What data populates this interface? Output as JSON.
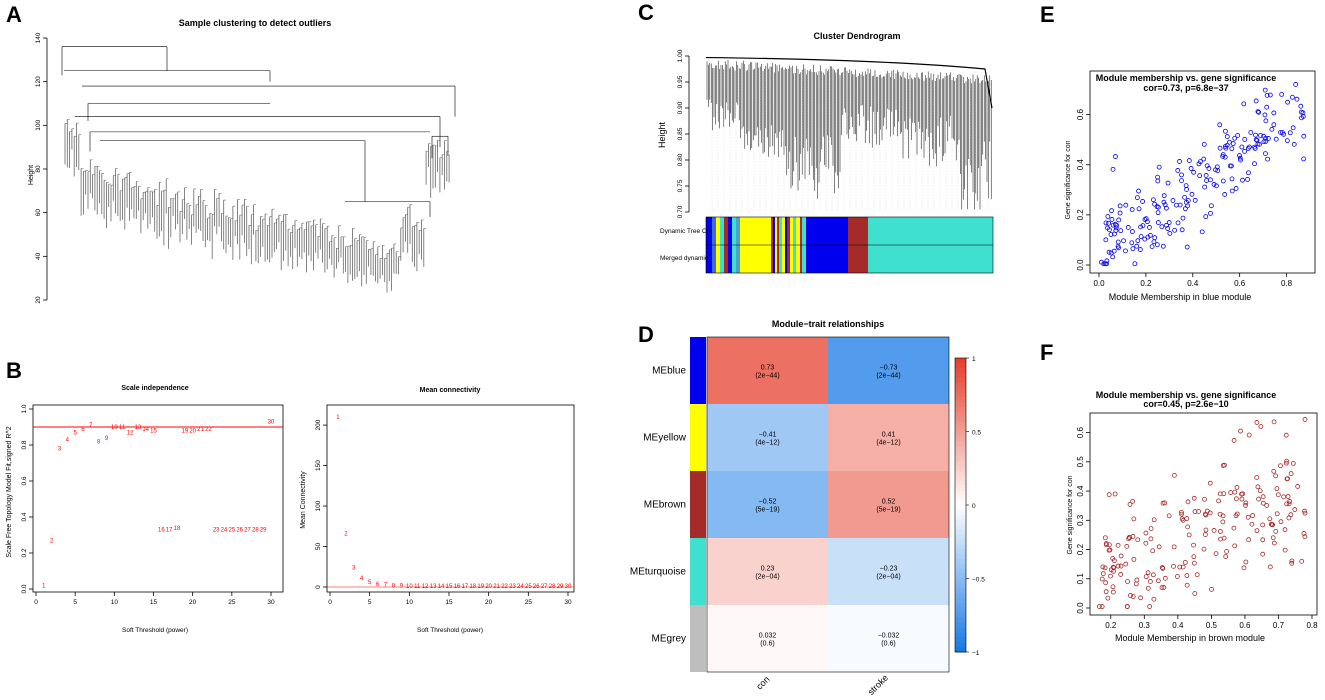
{
  "colors": {
    "blue": "#0000ee",
    "yellow": "#ffff00",
    "brown": "#a52a2a",
    "turquoise": "#40e0d0",
    "grey": "#bebebe",
    "red": "#ff0000",
    "brownPoint": "#a52a2a"
  },
  "panels": {
    "A": {
      "letter": "A",
      "title": "Sample clustering to detect outliers",
      "ylabel": "Height",
      "yticks": [
        "20",
        "40",
        "60",
        "80",
        "100",
        "120",
        "140"
      ]
    },
    "B": {
      "letter": "B",
      "left": {
        "title": "Scale independence",
        "xlabel": "Soft Threshold (power)",
        "ylabel": "Scale Free Topology Model Fit,signed R^2",
        "xticks": [
          "0",
          "5",
          "10",
          "15",
          "20",
          "25",
          "30"
        ],
        "yticks": [
          "0.0",
          "0.2",
          "0.4",
          "0.6",
          "0.8",
          "1.0"
        ],
        "hline": 0.9
      },
      "right": {
        "title": "Mean connectivity",
        "xlabel": "Soft Threshold (power)",
        "ylabel": "Mean Connectivity",
        "xticks": [
          "0",
          "5",
          "10",
          "15",
          "20",
          "25",
          "30"
        ],
        "yticks": [
          "0",
          "50",
          "100",
          "150",
          "200"
        ]
      }
    },
    "C": {
      "letter": "C",
      "title": "Cluster Dendrogram",
      "ylabel": "Height",
      "yticks": [
        "0.70",
        "0.75",
        "0.80",
        "0.85",
        "0.90",
        "0.95",
        "1.00"
      ],
      "bar1_label": "Dynamic Tree Cut",
      "bar2_label": "Merged dynamic"
    },
    "D": {
      "letter": "D",
      "title": "Module−trait relationships",
      "columns": [
        "con",
        "stroke"
      ],
      "rows": [
        {
          "name": "MEblue",
          "color": "#0000ee",
          "con": "0.73",
          "con_p": "(2e−44)",
          "stroke": "−0.73",
          "stroke_p": "(2e−44)"
        },
        {
          "name": "MEyellow",
          "color": "#ffff00",
          "con": "−0.41",
          "con_p": "(4e−12)",
          "stroke": "0.41",
          "stroke_p": "(4e−12)"
        },
        {
          "name": "MEbrown",
          "color": "#a52a2a",
          "con": "−0.52",
          "con_p": "(5e−19)",
          "stroke": "0.52",
          "stroke_p": "(5e−19)"
        },
        {
          "name": "MEturquoise",
          "color": "#40e0d0",
          "con": "0.23",
          "con_p": "(2e−04)",
          "stroke": "−0.23",
          "stroke_p": "(2e−04)"
        },
        {
          "name": "MEgrey",
          "color": "#bebebe",
          "con": "0.032",
          "con_p": "(0.6)",
          "stroke": "−0.032",
          "stroke_p": "(0.6)"
        }
      ],
      "legend_ticks": [
        "1",
        "0.5",
        "0",
        "−0.5",
        "−1"
      ]
    },
    "E": {
      "letter": "E",
      "title": "Module membership vs. gene significance",
      "subtitle": "cor=0.73, p=6.8e−37",
      "xlabel": "Module Membership in blue module",
      "ylabel": "Gene significance for  con",
      "xticks": [
        "0.0",
        "0.2",
        "0.4",
        "0.6",
        "0.8"
      ],
      "yticks": [
        "0.0",
        "0.2",
        "0.4",
        "0.6"
      ]
    },
    "F": {
      "letter": "F",
      "title": "Module membership vs. gene significance",
      "subtitle": "cor=0.45, p=2.6e−10",
      "xlabel": "Module Membership in brown module",
      "ylabel": "Gene significance for  con",
      "xticks": [
        "0.2",
        "0.3",
        "0.4",
        "0.5",
        "0.6",
        "0.7",
        "0.8"
      ],
      "yticks": [
        "0.0",
        "0.1",
        "0.2",
        "0.3",
        "0.4",
        "0.5",
        "0.6"
      ]
    }
  },
  "chart_data": [
    {
      "type": "scatter",
      "panel": "B-left",
      "title": "Scale independence",
      "xlabel": "Soft Threshold (power)",
      "ylabel": "Scale Free Topology Model Fit,signed R^2",
      "xlim": [
        0,
        30
      ],
      "ylim": [
        0,
        1
      ],
      "x": [
        1,
        2,
        3,
        4,
        5,
        6,
        7,
        8,
        9,
        10,
        11,
        12,
        13,
        14,
        15,
        16,
        17,
        18,
        19,
        20,
        21,
        22,
        23,
        24,
        25,
        26,
        27,
        28,
        29,
        30
      ],
      "values": [
        0.02,
        0.27,
        0.78,
        0.83,
        0.87,
        0.89,
        0.91,
        0.82,
        0.84,
        0.9,
        0.9,
        0.87,
        0.9,
        0.89,
        0.88,
        0.33,
        0.33,
        0.34,
        0.88,
        0.88,
        0.89,
        0.89,
        0.33,
        0.33,
        0.33,
        0.33,
        0.33,
        0.33,
        0.33,
        0.93
      ],
      "hline": 0.9
    },
    {
      "type": "scatter",
      "panel": "B-right",
      "title": "Mean connectivity",
      "xlabel": "Soft Threshold (power)",
      "ylabel": "Mean Connectivity",
      "xlim": [
        0,
        30
      ],
      "ylim": [
        0,
        210
      ],
      "x": [
        1,
        2,
        3,
        4,
        5,
        6,
        7,
        8,
        9,
        10,
        11,
        12,
        13,
        14,
        15,
        16,
        17,
        18,
        19,
        20,
        21,
        22,
        23,
        24,
        25,
        26,
        27,
        28,
        29,
        30
      ],
      "values": [
        210,
        66,
        24,
        11,
        6,
        4,
        3,
        2,
        2,
        1.5,
        1,
        1,
        1,
        1,
        1,
        1,
        1,
        1,
        1,
        1,
        1,
        1,
        1,
        1,
        1,
        1,
        1,
        1,
        1,
        1
      ]
    },
    {
      "type": "heatmap",
      "panel": "D",
      "title": "Module−trait relationships",
      "columns": [
        "con",
        "stroke"
      ],
      "rows": [
        "MEblue",
        "MEyellow",
        "MEbrown",
        "MEturquoise",
        "MEgrey"
      ],
      "values": [
        [
          0.73,
          -0.73
        ],
        [
          -0.41,
          0.41
        ],
        [
          -0.52,
          0.52
        ],
        [
          0.23,
          -0.23
        ],
        [
          0.032,
          -0.032
        ]
      ],
      "pvalues": [
        [
          "2e-44",
          "2e-44"
        ],
        [
          "4e-12",
          "4e-12"
        ],
        [
          "5e-19",
          "5e-19"
        ],
        [
          "2e-04",
          "2e-04"
        ],
        [
          "0.6",
          "0.6"
        ]
      ],
      "range": [
        -1,
        1
      ]
    },
    {
      "type": "scatter",
      "panel": "E",
      "title": "Module membership vs. gene significance",
      "subtitle": "cor=0.73, p=6.8e−37",
      "xlabel": "Module Membership in blue module",
      "ylabel": "Gene significance for  con",
      "xlim": [
        0,
        0.9
      ],
      "ylim": [
        0,
        0.75
      ],
      "correlation": 0.73
    },
    {
      "type": "scatter",
      "panel": "F",
      "title": "Module membership vs. gene significance",
      "subtitle": "cor=0.45, p=2.6e−10",
      "xlabel": "Module Membership in brown module",
      "ylabel": "Gene significance for  con",
      "xlim": [
        0.15,
        0.8
      ],
      "ylim": [
        0,
        0.65
      ],
      "correlation": 0.45
    }
  ]
}
